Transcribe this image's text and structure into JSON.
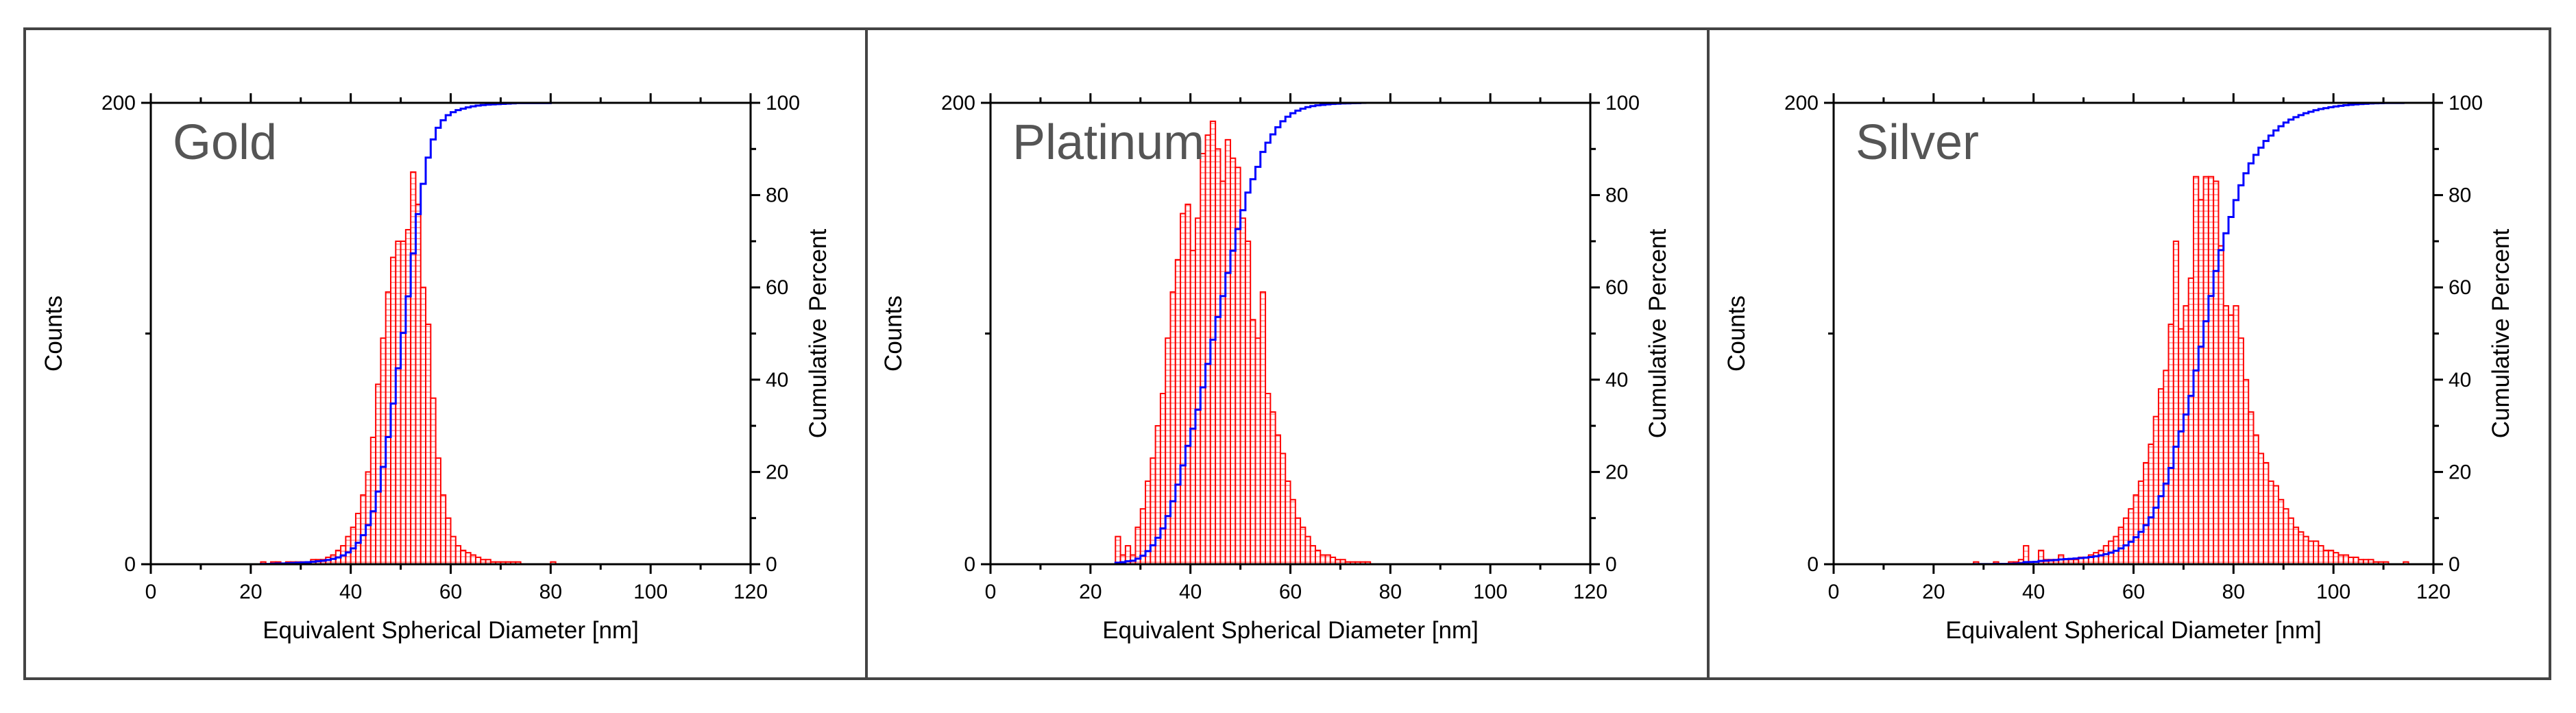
{
  "colors": {
    "bar": "#ff0000",
    "cumulative": "#0000ff",
    "title": "#555555",
    "frame": "#444444"
  },
  "chart_data": [
    {
      "type": "bar",
      "title": "Gold",
      "xlabel": "Equivalent Spherical Diameter [nm]",
      "ylabel": "Counts",
      "y2label": "Cumulative Percent",
      "xlim": [
        0,
        120
      ],
      "ylim": [
        0,
        200
      ],
      "y2lim": [
        0,
        100
      ],
      "xticks": [
        "0",
        "20",
        "40",
        "60",
        "80",
        "100",
        "120"
      ],
      "yticks": [
        "0",
        "200"
      ],
      "y2ticks": [
        "0",
        "20",
        "40",
        "60",
        "80",
        "100"
      ],
      "bin_width": 1,
      "x": [
        22,
        23,
        24,
        25,
        26,
        27,
        28,
        29,
        30,
        31,
        32,
        33,
        34,
        35,
        36,
        37,
        38,
        39,
        40,
        41,
        42,
        43,
        44,
        45,
        46,
        47,
        48,
        49,
        50,
        51,
        52,
        53,
        54,
        55,
        56,
        57,
        58,
        59,
        60,
        61,
        62,
        63,
        64,
        65,
        66,
        67,
        68,
        69,
        70,
        71,
        72,
        73,
        74,
        75,
        76,
        77,
        78,
        79,
        80
      ],
      "values": [
        1,
        0,
        1,
        1,
        0,
        1,
        1,
        1,
        1,
        1,
        2,
        2,
        2,
        3,
        4,
        6,
        8,
        12,
        16,
        22,
        30,
        40,
        55,
        78,
        98,
        118,
        133,
        140,
        140,
        145,
        170,
        156,
        120,
        104,
        72,
        46,
        30,
        20,
        12,
        8,
        6,
        5,
        4,
        3,
        2,
        2,
        1,
        1,
        1,
        1,
        1,
        1,
        0,
        0,
        0,
        0,
        0,
        0,
        1
      ]
    },
    {
      "type": "bar",
      "title": "Platinum",
      "xlabel": "Equivalent Spherical Diameter [nm]",
      "ylabel": "Counts",
      "y2label": "Cumulative Percent",
      "xlim": [
        0,
        120
      ],
      "ylim": [
        0,
        200
      ],
      "y2lim": [
        0,
        100
      ],
      "xticks": [
        "0",
        "20",
        "40",
        "60",
        "80",
        "100",
        "120"
      ],
      "yticks": [
        "0",
        "200"
      ],
      "y2ticks": [
        "0",
        "20",
        "40",
        "60",
        "80",
        "100"
      ],
      "bin_width": 1,
      "x": [
        25,
        26,
        27,
        28,
        29,
        30,
        31,
        32,
        33,
        34,
        35,
        36,
        37,
        38,
        39,
        40,
        41,
        42,
        43,
        44,
        45,
        46,
        47,
        48,
        49,
        50,
        51,
        52,
        53,
        54,
        55,
        56,
        57,
        58,
        59,
        60,
        61,
        62,
        63,
        64,
        65,
        66,
        67,
        68,
        69,
        70,
        71,
        72,
        73,
        74,
        75
      ],
      "values": [
        12,
        4,
        8,
        4,
        16,
        24,
        36,
        46,
        60,
        74,
        98,
        118,
        132,
        152,
        156,
        136,
        150,
        178,
        186,
        192,
        180,
        166,
        184,
        176,
        172,
        150,
        140,
        106,
        98,
        118,
        74,
        66,
        56,
        48,
        36,
        28,
        20,
        16,
        12,
        8,
        6,
        4,
        4,
        3,
        2,
        2,
        1,
        1,
        1,
        1,
        1
      ]
    },
    {
      "type": "bar",
      "title": "Silver",
      "xlabel": "Equivalent Spherical Diameter [nm]",
      "ylabel": "Counts",
      "y2label": "Cumulative Percent",
      "xlim": [
        0,
        120
      ],
      "ylim": [
        0,
        200
      ],
      "y2lim": [
        0,
        100
      ],
      "xticks": [
        "0",
        "20",
        "40",
        "60",
        "80",
        "100",
        "120"
      ],
      "yticks": [
        "0",
        "200"
      ],
      "y2ticks": [
        "0",
        "20",
        "40",
        "60",
        "80",
        "100"
      ],
      "bin_width": 1,
      "x": [
        28,
        29,
        30,
        31,
        32,
        33,
        34,
        35,
        36,
        37,
        38,
        39,
        40,
        41,
        42,
        43,
        44,
        45,
        46,
        47,
        48,
        49,
        50,
        51,
        52,
        53,
        54,
        55,
        56,
        57,
        58,
        59,
        60,
        61,
        62,
        63,
        64,
        65,
        66,
        67,
        68,
        69,
        70,
        71,
        72,
        73,
        74,
        75,
        76,
        77,
        78,
        79,
        80,
        81,
        82,
        83,
        84,
        85,
        86,
        87,
        88,
        89,
        90,
        91,
        92,
        93,
        94,
        95,
        96,
        97,
        98,
        99,
        100,
        101,
        102,
        103,
        104,
        105,
        106,
        107,
        108,
        109,
        110,
        111,
        112,
        113,
        114
      ],
      "values": [
        1,
        0,
        0,
        0,
        1,
        0,
        0,
        1,
        1,
        2,
        8,
        1,
        1,
        6,
        2,
        2,
        2,
        4,
        2,
        2,
        2,
        3,
        3,
        4,
        5,
        6,
        8,
        10,
        12,
        16,
        20,
        24,
        30,
        36,
        44,
        52,
        64,
        76,
        84,
        104,
        140,
        102,
        112,
        124,
        168,
        158,
        168,
        168,
        166,
        138,
        112,
        108,
        112,
        98,
        80,
        66,
        56,
        48,
        44,
        36,
        34,
        28,
        24,
        20,
        16,
        14,
        12,
        10,
        10,
        8,
        6,
        6,
        5,
        4,
        4,
        3,
        3,
        2,
        2,
        2,
        1,
        1,
        1,
        0,
        0,
        0,
        1
      ]
    }
  ]
}
